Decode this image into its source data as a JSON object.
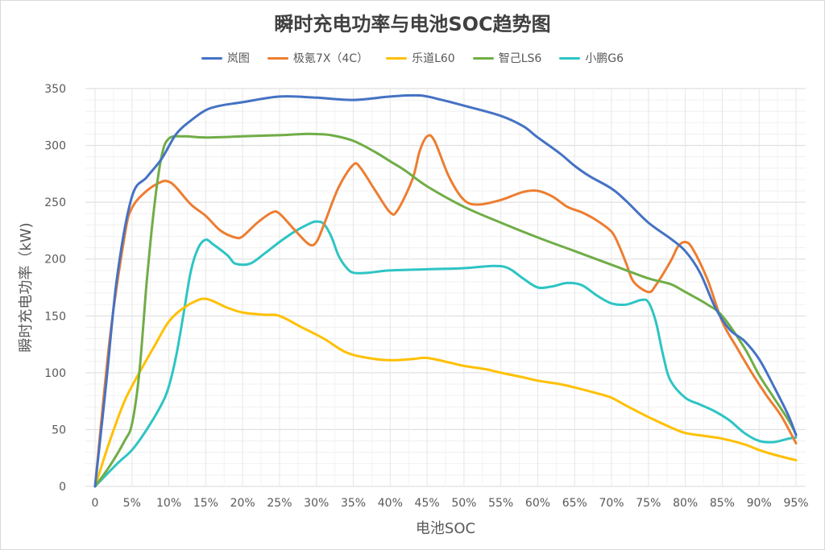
{
  "chart_data": {
    "type": "line",
    "title": "瞬时充电功率与电池SOC趋势图",
    "xlabel": "电池SOC",
    "ylabel": "瞬时充电功率（kW)",
    "ylim": [
      0,
      350
    ],
    "yticks": [
      0,
      50,
      100,
      150,
      200,
      250,
      300,
      350
    ],
    "xlim": [
      0,
      95
    ],
    "xticks": [
      0,
      5,
      10,
      15,
      20,
      25,
      30,
      35,
      40,
      45,
      50,
      55,
      60,
      65,
      70,
      75,
      80,
      85,
      90,
      95
    ],
    "xtick_labels": [
      "0",
      "5%",
      "10%",
      "15%",
      "20%",
      "25%",
      "30%",
      "35%",
      "40%",
      "45%",
      "50%",
      "55%",
      "60%",
      "65%",
      "70%",
      "75%",
      "80%",
      "85%",
      "90%",
      "95%"
    ],
    "grid": true,
    "legend_position": "top",
    "series": [
      {
        "name": "岚图",
        "color": "#4472C4",
        "points": [
          [
            0,
            0
          ],
          [
            1.5,
            90
          ],
          [
            3,
            185
          ],
          [
            5,
            255
          ],
          [
            7,
            272
          ],
          [
            9,
            288
          ],
          [
            11,
            310
          ],
          [
            13,
            322
          ],
          [
            15,
            331
          ],
          [
            17,
            335
          ],
          [
            20,
            338
          ],
          [
            25,
            343
          ],
          [
            30,
            342
          ],
          [
            35,
            340
          ],
          [
            40,
            343
          ],
          [
            44,
            344
          ],
          [
            47,
            340
          ],
          [
            50,
            335
          ],
          [
            55,
            326
          ],
          [
            58,
            317
          ],
          [
            60,
            307
          ],
          [
            63,
            293
          ],
          [
            65,
            282
          ],
          [
            67,
            273
          ],
          [
            70,
            262
          ],
          [
            72,
            251
          ],
          [
            75,
            232
          ],
          [
            78,
            218
          ],
          [
            80,
            207
          ],
          [
            82,
            188
          ],
          [
            84,
            158
          ],
          [
            86,
            138
          ],
          [
            88,
            128
          ],
          [
            90,
            112
          ],
          [
            92,
            88
          ],
          [
            94,
            62
          ],
          [
            95,
            45
          ]
        ]
      },
      {
        "name": "极氪7X（4C）",
        "color": "#ED7D31",
        "points": [
          [
            0,
            0
          ],
          [
            2,
            130
          ],
          [
            4,
            220
          ],
          [
            5,
            245
          ],
          [
            7,
            260
          ],
          [
            9,
            268
          ],
          [
            10,
            268
          ],
          [
            11,
            263
          ],
          [
            13,
            248
          ],
          [
            15,
            238
          ],
          [
            17,
            225
          ],
          [
            19,
            219
          ],
          [
            20,
            220
          ],
          [
            22,
            232
          ],
          [
            24,
            241
          ],
          [
            25,
            240
          ],
          [
            27,
            226
          ],
          [
            29,
            213
          ],
          [
            30,
            215
          ],
          [
            31,
            230
          ],
          [
            33,
            263
          ],
          [
            35,
            283
          ],
          [
            36,
            280
          ],
          [
            38,
            260
          ],
          [
            40,
            241
          ],
          [
            41,
            243
          ],
          [
            43,
            270
          ],
          [
            44,
            295
          ],
          [
            45,
            308
          ],
          [
            46,
            304
          ],
          [
            48,
            272
          ],
          [
            50,
            252
          ],
          [
            52,
            248
          ],
          [
            55,
            252
          ],
          [
            58,
            259
          ],
          [
            60,
            260
          ],
          [
            62,
            255
          ],
          [
            64,
            246
          ],
          [
            66,
            241
          ],
          [
            68,
            234
          ],
          [
            70,
            224
          ],
          [
            71,
            212
          ],
          [
            72,
            196
          ],
          [
            73,
            180
          ],
          [
            75,
            171
          ],
          [
            76,
            177
          ],
          [
            78,
            198
          ],
          [
            79,
            211
          ],
          [
            80,
            215
          ],
          [
            81,
            209
          ],
          [
            83,
            182
          ],
          [
            85,
            145
          ],
          [
            87,
            122
          ],
          [
            89,
            100
          ],
          [
            91,
            80
          ],
          [
            93,
            62
          ],
          [
            95,
            38
          ]
        ]
      },
      {
        "name": "乐道L60",
        "color": "#FFC000",
        "points": [
          [
            0,
            0
          ],
          [
            2,
            40
          ],
          [
            4,
            75
          ],
          [
            6,
            100
          ],
          [
            8,
            123
          ],
          [
            10,
            145
          ],
          [
            12,
            157
          ],
          [
            14,
            164
          ],
          [
            15,
            165
          ],
          [
            16,
            163
          ],
          [
            18,
            157
          ],
          [
            20,
            153
          ],
          [
            23,
            151
          ],
          [
            25,
            150
          ],
          [
            28,
            140
          ],
          [
            31,
            130
          ],
          [
            34,
            118
          ],
          [
            37,
            113
          ],
          [
            40,
            111
          ],
          [
            43,
            112
          ],
          [
            45,
            113
          ],
          [
            48,
            109
          ],
          [
            50,
            106
          ],
          [
            53,
            103
          ],
          [
            55,
            100
          ],
          [
            58,
            96
          ],
          [
            60,
            93
          ],
          [
            63,
            90
          ],
          [
            65,
            87
          ],
          [
            68,
            82
          ],
          [
            70,
            78
          ],
          [
            72,
            71
          ],
          [
            75,
            61
          ],
          [
            78,
            52
          ],
          [
            80,
            47
          ],
          [
            83,
            44
          ],
          [
            85,
            42
          ],
          [
            88,
            37
          ],
          [
            90,
            32
          ],
          [
            92,
            28
          ],
          [
            95,
            23
          ]
        ]
      },
      {
        "name": "智己LS6",
        "color": "#70AD47",
        "points": [
          [
            0,
            0
          ],
          [
            2,
            18
          ],
          [
            4,
            40
          ],
          [
            5,
            55
          ],
          [
            6,
            100
          ],
          [
            7,
            180
          ],
          [
            8,
            245
          ],
          [
            9,
            290
          ],
          [
            10,
            306
          ],
          [
            12,
            308
          ],
          [
            15,
            307
          ],
          [
            20,
            308
          ],
          [
            25,
            309
          ],
          [
            28,
            310
          ],
          [
            30,
            310
          ],
          [
            32,
            309
          ],
          [
            35,
            304
          ],
          [
            38,
            294
          ],
          [
            40,
            286
          ],
          [
            42,
            278
          ],
          [
            45,
            264
          ],
          [
            50,
            246
          ],
          [
            55,
            232
          ],
          [
            60,
            219
          ],
          [
            65,
            207
          ],
          [
            70,
            195
          ],
          [
            75,
            183
          ],
          [
            78,
            178
          ],
          [
            80,
            171
          ],
          [
            83,
            160
          ],
          [
            85,
            150
          ],
          [
            88,
            122
          ],
          [
            90,
            98
          ],
          [
            92,
            78
          ],
          [
            94,
            58
          ],
          [
            95,
            46
          ]
        ]
      },
      {
        "name": "小鹏G6",
        "color": "#2EC4C4",
        "points": [
          [
            0,
            0
          ],
          [
            3,
            20
          ],
          [
            5,
            32
          ],
          [
            7,
            50
          ],
          [
            9,
            72
          ],
          [
            10,
            88
          ],
          [
            11,
            115
          ],
          [
            12,
            152
          ],
          [
            13,
            190
          ],
          [
            14,
            210
          ],
          [
            15,
            217
          ],
          [
            16,
            213
          ],
          [
            18,
            203
          ],
          [
            19,
            196
          ],
          [
            21,
            196
          ],
          [
            23,
            205
          ],
          [
            25,
            215
          ],
          [
            27,
            224
          ],
          [
            29,
            231
          ],
          [
            30,
            233
          ],
          [
            31,
            231
          ],
          [
            32,
            220
          ],
          [
            33,
            203
          ],
          [
            34,
            193
          ],
          [
            35,
            188
          ],
          [
            37,
            188
          ],
          [
            40,
            190
          ],
          [
            45,
            191
          ],
          [
            50,
            192
          ],
          [
            54,
            194
          ],
          [
            56,
            192
          ],
          [
            58,
            183
          ],
          [
            60,
            175
          ],
          [
            62,
            176
          ],
          [
            64,
            179
          ],
          [
            66,
            177
          ],
          [
            68,
            168
          ],
          [
            70,
            161
          ],
          [
            72,
            160
          ],
          [
            74,
            164
          ],
          [
            75,
            162
          ],
          [
            76,
            145
          ],
          [
            77,
            115
          ],
          [
            78,
            93
          ],
          [
            80,
            78
          ],
          [
            82,
            72
          ],
          [
            84,
            66
          ],
          [
            86,
            58
          ],
          [
            88,
            47
          ],
          [
            90,
            40
          ],
          [
            92,
            39
          ],
          [
            94,
            42
          ],
          [
            95,
            43
          ]
        ]
      }
    ]
  }
}
